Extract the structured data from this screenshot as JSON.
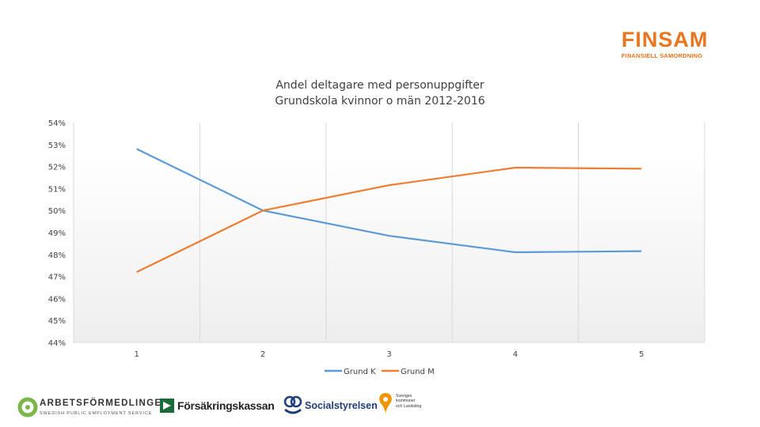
{
  "brand": {
    "name": "FINSAM",
    "tagline": "FINANSIELL SAMORDNING",
    "color": "#e8761e"
  },
  "chart_data": {
    "type": "line",
    "title_lines": [
      "Andel deltagare med personuppgifter",
      "Grundskola kvinnor o män 2012-2016"
    ],
    "categories": [
      "1",
      "2",
      "3",
      "4",
      "5"
    ],
    "y_ticks": [
      "54%",
      "53%",
      "52%",
      "51%",
      "50%",
      "49%",
      "48%",
      "47%",
      "46%",
      "45%",
      "44%"
    ],
    "ylim": [
      44,
      54
    ],
    "series": [
      {
        "name": "Grund K",
        "color": "#5b9bd5",
        "values": [
          52.8,
          50.0,
          48.85,
          48.1,
          48.15
        ]
      },
      {
        "name": "Grund M",
        "color": "#ed7d31",
        "values": [
          47.2,
          50.0,
          51.15,
          51.95,
          51.9
        ]
      }
    ],
    "legend": "bottom",
    "grid": "vertical"
  },
  "footer": {
    "arbetsformedlingen": "ARBETSFÖRMEDLINGEN",
    "arbetsformedlingen_sub": "SWEDISH PUBLIC EMPLOYMENT SERVICE",
    "forsakringskassan": "Försäkringskassan",
    "socialstyrelsen": "Socialstyrelsen",
    "skl": "Sveriges\nkommuner\noch Landsting",
    "colors": {
      "af_green": "#7ab648",
      "af_text": "#333333",
      "fk_green": "#1a6b3a",
      "sos_blue": "#1f3d7a",
      "skl_orange": "#f29400"
    }
  }
}
